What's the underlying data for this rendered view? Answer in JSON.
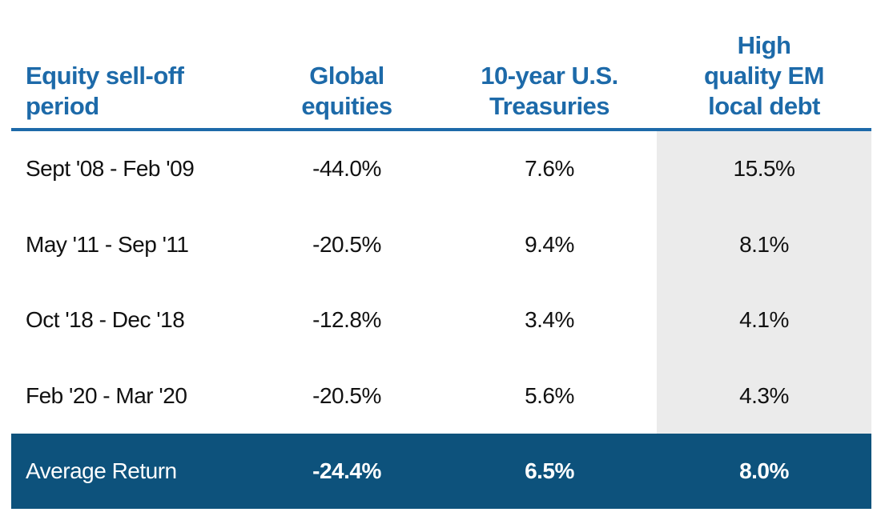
{
  "table": {
    "header": [
      [
        "Equity sell-off",
        "period"
      ],
      [
        "Global",
        "equities"
      ],
      [
        "10-year U.S.",
        "Treasuries"
      ],
      [
        "High",
        "quality EM",
        "local debt"
      ]
    ],
    "rows": [
      [
        "Sept '08 - Feb '09",
        "-44.0%",
        "7.6%",
        "15.5%"
      ],
      [
        "May '11 - Sep '11",
        "-20.5%",
        "9.4%",
        "8.1%"
      ],
      [
        "Oct '18 - Dec '18",
        "-12.8%",
        "3.4%",
        "4.1%"
      ],
      [
        "Feb '20 - Mar '20",
        "-20.5%",
        "5.6%",
        "4.3%"
      ]
    ],
    "footer": [
      "Average Return",
      "-24.4%",
      "6.5%",
      "8.0%"
    ]
  }
}
